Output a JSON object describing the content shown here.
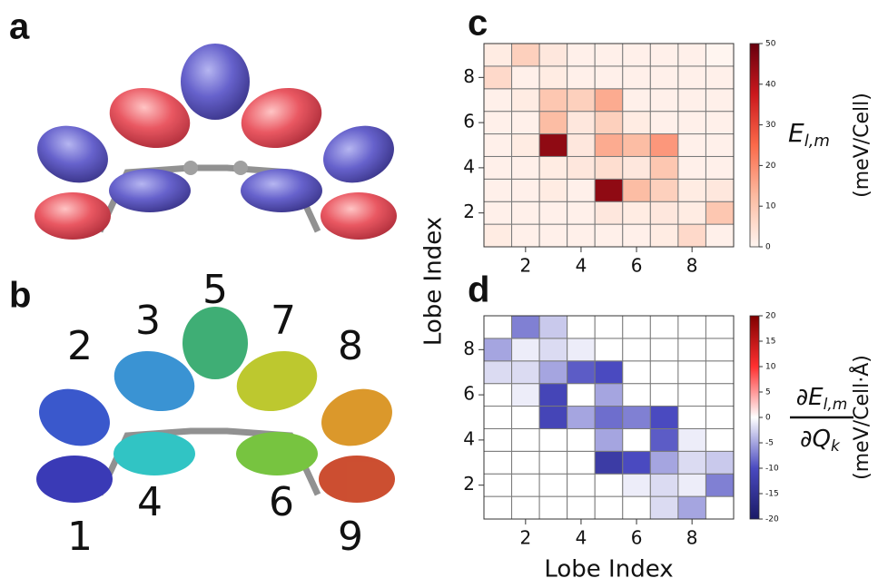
{
  "panel_labels": [
    "a",
    "b",
    "c",
    "d"
  ],
  "lobe_labels": [
    "1",
    "2",
    "3",
    "4",
    "5",
    "6",
    "7",
    "8",
    "9"
  ],
  "chart_data": [
    {
      "type": "heatmap",
      "ylabel": "Lobe Index",
      "x": [
        1,
        2,
        3,
        4,
        5,
        6,
        7,
        8,
        9
      ],
      "y": [
        1,
        2,
        3,
        4,
        5,
        6,
        7,
        8,
        9
      ],
      "z": [
        [
          2,
          1,
          1,
          1,
          1,
          1,
          2,
          6,
          1
        ],
        [
          1,
          1,
          1,
          1,
          3,
          2,
          3,
          2,
          10
        ],
        [
          1,
          1,
          2,
          1,
          45,
          12,
          8,
          2,
          3
        ],
        [
          1,
          1,
          2,
          3,
          5,
          3,
          10,
          1,
          1
        ],
        [
          1,
          2,
          45,
          3,
          15,
          12,
          18,
          1,
          1
        ],
        [
          1,
          1,
          12,
          3,
          8,
          2,
          1,
          1,
          1
        ],
        [
          1,
          2,
          10,
          8,
          15,
          1,
          1,
          1,
          1
        ],
        [
          6,
          1,
          2,
          1,
          1,
          1,
          1,
          1,
          1
        ],
        [
          2,
          8,
          3,
          1,
          1,
          1,
          1,
          1,
          0
        ]
      ],
      "xlim": [
        0.5,
        9.5
      ],
      "ylim": [
        0.5,
        9.5
      ],
      "xticks": [
        2,
        4,
        6,
        8
      ],
      "yticks": [
        2,
        4,
        6,
        8
      ],
      "clim": [
        0,
        50
      ],
      "cticks": [
        0,
        10,
        20,
        30,
        40,
        50
      ],
      "colormap": [
        "#fff5f0",
        "#fcbba1",
        "#fb6a4a",
        "#cb181d",
        "#67000d"
      ],
      "colorbar_label": {
        "symbol": "E",
        "subscript": "l,m",
        "unit": "(meV/Cell)"
      }
    },
    {
      "type": "heatmap",
      "xlabel": "Lobe Index",
      "x": [
        1,
        2,
        3,
        4,
        5,
        6,
        7,
        8,
        9
      ],
      "y": [
        1,
        2,
        3,
        4,
        5,
        6,
        7,
        8,
        9
      ],
      "z": [
        [
          0,
          0,
          0,
          0,
          0,
          0,
          -2,
          -5,
          0
        ],
        [
          0,
          0,
          0,
          0,
          0,
          -1,
          -2,
          -1,
          -7
        ],
        [
          0,
          0,
          0,
          0,
          -13,
          -10,
          -5,
          -2,
          -3
        ],
        [
          0,
          0,
          0,
          0,
          -5,
          0,
          -9,
          -1,
          0
        ],
        [
          0,
          0,
          -11,
          -5,
          -8,
          -7,
          -10,
          0,
          0
        ],
        [
          0,
          -1,
          -11,
          0,
          -5,
          0,
          0,
          0,
          0
        ],
        [
          -2,
          -2,
          -5,
          -9,
          -10,
          0,
          0,
          0,
          0
        ],
        [
          -5,
          -1,
          -2,
          -1,
          0,
          0,
          0,
          0,
          0
        ],
        [
          0,
          -7,
          -3,
          0,
          0,
          0,
          0,
          0,
          0
        ]
      ],
      "xlim": [
        0.5,
        9.5
      ],
      "ylim": [
        0.5,
        9.5
      ],
      "xticks": [
        2,
        4,
        6,
        8
      ],
      "yticks": [
        2,
        4,
        6,
        8
      ],
      "clim": [
        -20,
        20
      ],
      "cticks": [
        -20,
        -15,
        -10,
        -5,
        0,
        5,
        10,
        15,
        20
      ],
      "colormap": [
        "#1a1a66",
        "#4a4ac0",
        "#ffffff",
        "#ff3030",
        "#800000"
      ],
      "colorbar_label": {
        "numerator": "∂E",
        "numerator_subscript": "l,m",
        "denominator": "∂Q",
        "denominator_subscript": "k",
        "unit": "(meV/Cell·Å)"
      }
    }
  ]
}
